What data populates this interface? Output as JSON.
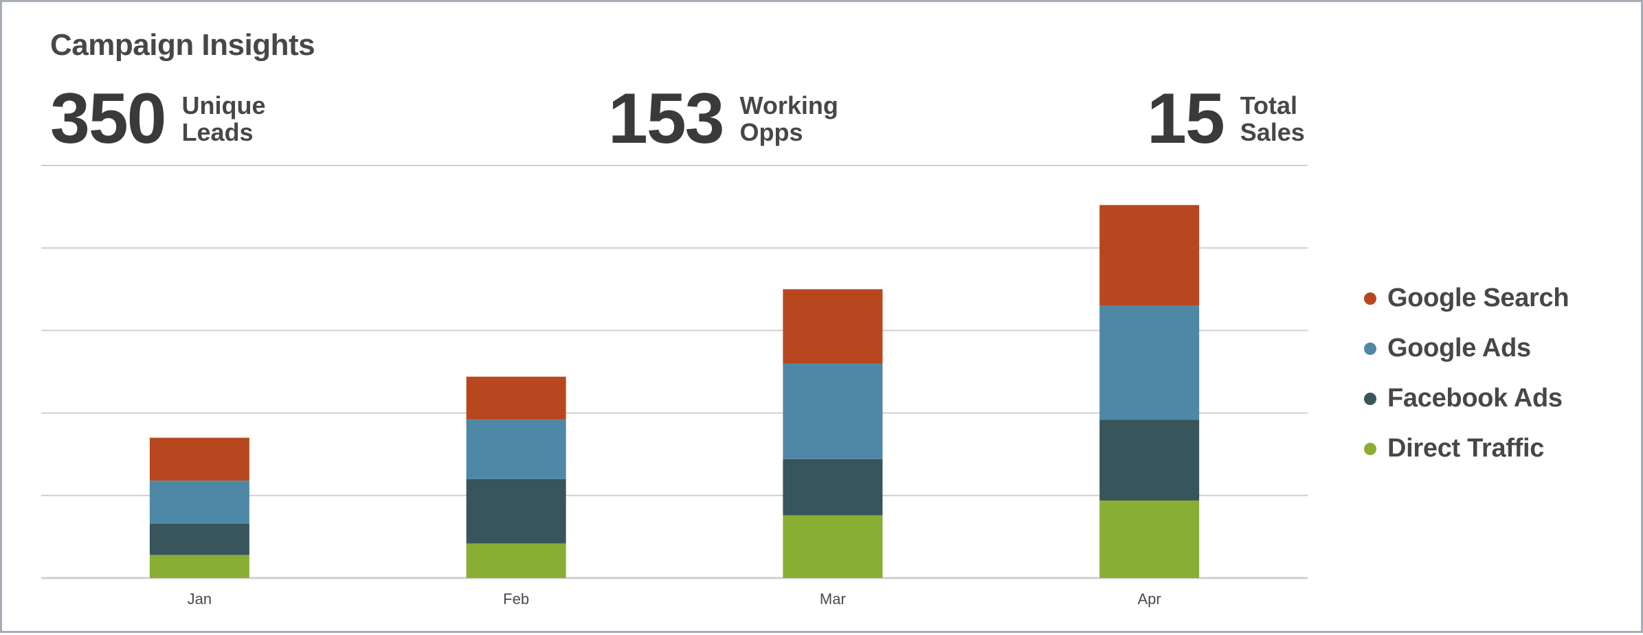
{
  "panel": {
    "title": "Campaign Insights"
  },
  "stats": [
    {
      "value": "350",
      "label_line1": "Unique",
      "label_line2": "Leads"
    },
    {
      "value": "153",
      "label_line1": "Working",
      "label_line2": "Opps"
    },
    {
      "value": "15",
      "label_line1": "Total",
      "label_line2": "Sales"
    }
  ],
  "chart_data": {
    "type": "bar",
    "stacked": true,
    "categories": [
      "Jan",
      "Feb",
      "Mar",
      "Apr"
    ],
    "series": [
      {
        "name": "Direct Traffic",
        "color": "#8aad33",
        "values": [
          14,
          21,
          38,
          47
        ]
      },
      {
        "name": "Facebook Ads",
        "color": "#37555a",
        "values": [
          19,
          39,
          34,
          49
        ]
      },
      {
        "name": "Google Ads",
        "color": "#4e88a6",
        "values": [
          26,
          36,
          58,
          69
        ]
      },
      {
        "name": "Google Search",
        "color": "#b84720",
        "values": [
          26,
          26,
          45,
          61
        ]
      }
    ],
    "ylim": [
      0,
      250
    ],
    "gridlines": true,
    "legend_position": "right",
    "xlabel": "",
    "ylabel": ""
  }
}
